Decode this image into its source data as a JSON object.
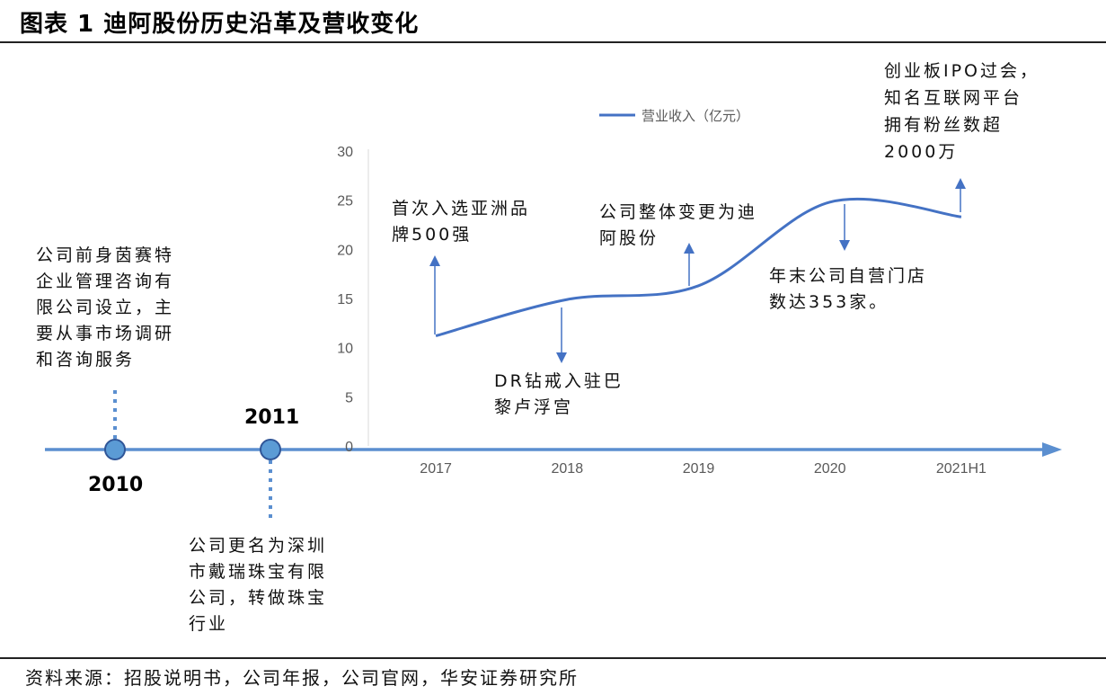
{
  "title": "图表 1 迪阿股份历史沿革及营收变化",
  "source": "资料来源：招股说明书，公司年报，公司官网，华安证券研究所",
  "timeline": {
    "years": [
      "2010",
      "2011"
    ],
    "notes": {
      "n2010": "公司前身茵赛特\n企业管理咨询有\n限公司设立，主\n要从事市场调研\n和咨询服务",
      "n2011": "公司更名为深圳\n市戴瑞珠宝有限\n公司，转做珠宝\n行业"
    }
  },
  "annotations": {
    "a2017": "首次入选亚洲品\n牌500强",
    "a2018": "DR钻戒入驻巴\n黎卢浮宫",
    "a2019": "公司整体变更为迪\n阿股份",
    "a2020": "年末公司自营门店\n数达353家。",
    "a2021": "创业板IPO过会，\n知名互联网平台\n拥有粉丝数超\n2000万"
  },
  "colors": {
    "line": "#4472c4",
    "axis": "#5b8fd0",
    "dot_fill": "#5b9bd5",
    "dot_stroke": "#2f5597",
    "tick_text": "#595959"
  },
  "chart_data": {
    "type": "line",
    "categories": [
      "2017",
      "2018",
      "2019",
      "2020",
      "2021H1"
    ],
    "series": [
      {
        "name": "营业收入（亿元）",
        "values": [
          11.2,
          14.9,
          16.3,
          24.8,
          23.3
        ]
      }
    ],
    "ylim": [
      0,
      30
    ],
    "yticks": [
      0,
      5,
      10,
      15,
      20,
      25,
      30
    ],
    "legend": "top",
    "grid": false
  }
}
